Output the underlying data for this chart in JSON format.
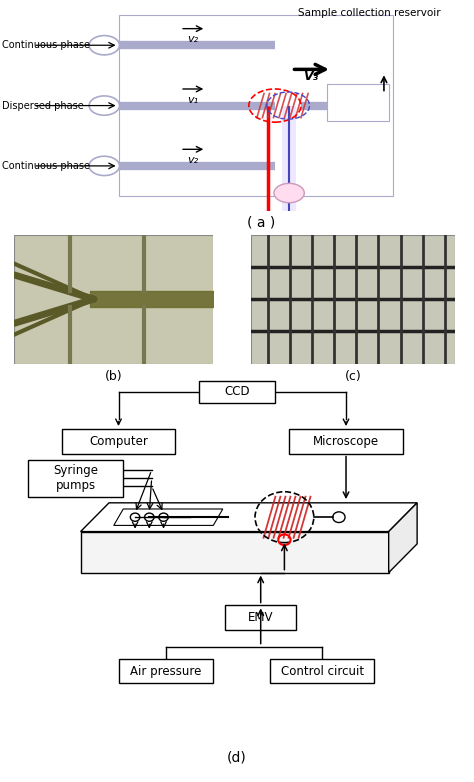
{
  "fig_width": 4.74,
  "fig_height": 7.82,
  "bg_color": "#ffffff",
  "panel_a": {
    "title": "Sample collection reservoir",
    "labels": [
      "Continuous phase",
      "Dispersed phase",
      "Continuous phase"
    ],
    "velocities": [
      "v₂",
      "v₁",
      "v₂"
    ],
    "v3": "V₃",
    "sub_label": "( a )"
  },
  "panel_b": {
    "sub_label": "(b)"
  },
  "panel_c": {
    "sub_label": "(c)"
  },
  "panel_d": {
    "sub_label": "(d)"
  }
}
